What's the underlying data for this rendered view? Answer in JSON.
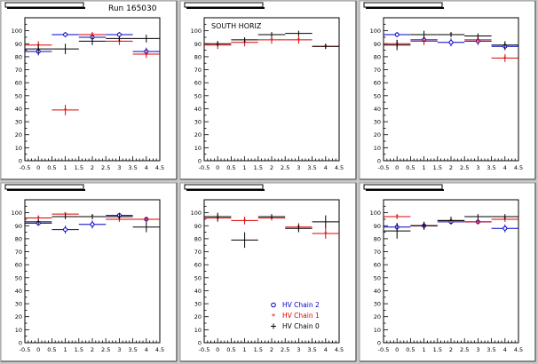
{
  "run_label": "Run 165030",
  "legend": [
    {
      "label": "HV Chain 2",
      "color": "#0000cc",
      "marker": "open-circle"
    },
    {
      "label": "HV Chain 1",
      "color": "#dd0000",
      "marker": "star"
    },
    {
      "label": "HV Chain 0",
      "color": "#000000",
      "marker": "cross"
    }
  ],
  "chart_data": [
    {
      "type": "scatter",
      "title": "",
      "annotation": "Run 165030",
      "xlim": [
        -0.5,
        4.5
      ],
      "ylim": [
        0,
        110
      ],
      "xticks": [
        "-0.5",
        "0",
        "0.5",
        "1",
        "1.5",
        "2",
        "2.5",
        "3",
        "3.5",
        "4",
        "4.5"
      ],
      "yticks": [
        "0",
        "10",
        "20",
        "30",
        "40",
        "50",
        "60",
        "70",
        "80",
        "90",
        "100"
      ],
      "series": [
        {
          "name": "HV Chain 2",
          "color": "#0000cc",
          "x": [
            0,
            1,
            2,
            3,
            4
          ],
          "y": [
            84,
            97,
            95,
            97,
            84
          ],
          "xerr": [
            0.5,
            0.5,
            0.5,
            0.5,
            0.5
          ],
          "yerr": [
            3,
            2,
            2,
            2,
            3
          ]
        },
        {
          "name": "HV Chain 1",
          "color": "#dd0000",
          "x": [
            0,
            1,
            2,
            3,
            4
          ],
          "y": [
            89,
            39,
            97,
            92,
            82
          ],
          "xerr": [
            0.5,
            0.5,
            0.5,
            0.5,
            0.5
          ],
          "yerr": [
            3,
            4,
            2,
            3,
            3
          ]
        },
        {
          "name": "HV Chain 0",
          "color": "#000000",
          "x": [
            0,
            1,
            2,
            3,
            4
          ],
          "y": [
            86,
            86,
            92,
            94,
            94
          ],
          "xerr": [
            0.5,
            0.5,
            0.5,
            0.5,
            0.5
          ],
          "yerr": [
            3,
            4,
            3,
            2,
            3
          ]
        }
      ]
    },
    {
      "type": "scatter",
      "title": "",
      "annotation": "SOUTH HORIZ",
      "xlim": [
        -0.5,
        4.5
      ],
      "ylim": [
        0,
        110
      ],
      "xticks": [
        "-0.5",
        "0",
        "0.5",
        "1",
        "1.5",
        "2",
        "2.5",
        "3",
        "3.5",
        "4",
        "4.5"
      ],
      "yticks": [
        "0",
        "10",
        "20",
        "30",
        "40",
        "50",
        "60",
        "70",
        "80",
        "90",
        "100"
      ],
      "series": [
        {
          "name": "HV Chain 2",
          "color": "#0000cc",
          "x": [],
          "y": [],
          "xerr": [],
          "yerr": []
        },
        {
          "name": "HV Chain 1",
          "color": "#dd0000",
          "x": [
            0,
            1,
            2,
            3,
            4
          ],
          "y": [
            89,
            91,
            93,
            93,
            88
          ],
          "xerr": [
            0.5,
            0.5,
            0.5,
            0.5,
            0.5
          ],
          "yerr": [
            3,
            3,
            3,
            3,
            2
          ]
        },
        {
          "name": "HV Chain 0",
          "color": "#000000",
          "x": [
            0,
            1,
            2,
            3,
            4
          ],
          "y": [
            90,
            93,
            97,
            98,
            88
          ],
          "xerr": [
            0.5,
            0.5,
            0.5,
            0.5,
            0.5
          ],
          "yerr": [
            2,
            2,
            2,
            2,
            2
          ]
        }
      ]
    },
    {
      "type": "scatter",
      "title": "",
      "annotation": "",
      "xlim": [
        -0.5,
        4.5
      ],
      "ylim": [
        0,
        110
      ],
      "xticks": [
        "-0.5",
        "0",
        "0.5",
        "1",
        "1.5",
        "2",
        "2.5",
        "3",
        "3.5",
        "4",
        "4.5"
      ],
      "yticks": [
        "0",
        "10",
        "20",
        "30",
        "40",
        "50",
        "60",
        "70",
        "80",
        "90",
        "100"
      ],
      "series": [
        {
          "name": "HV Chain 2",
          "color": "#0000cc",
          "x": [
            0,
            1,
            2,
            3,
            4
          ],
          "y": [
            97,
            93,
            91,
            92,
            88
          ],
          "xerr": [
            0.5,
            0.5,
            0.5,
            0.5,
            0.5
          ],
          "yerr": [
            2,
            2,
            3,
            3,
            3
          ]
        },
        {
          "name": "HV Chain 1",
          "color": "#dd0000",
          "x": [
            0,
            1,
            2,
            3,
            4
          ],
          "y": [
            90,
            92,
            97,
            93,
            79
          ],
          "xerr": [
            0.5,
            0.5,
            0.5,
            0.5,
            0.5
          ],
          "yerr": [
            3,
            3,
            2,
            3,
            3
          ]
        },
        {
          "name": "HV Chain 0",
          "color": "#000000",
          "x": [
            0,
            1,
            2,
            3,
            4
          ],
          "y": [
            89,
            97,
            97,
            96,
            89
          ],
          "xerr": [
            0.5,
            0.5,
            0.5,
            0.5,
            0.5
          ],
          "yerr": [
            4,
            3,
            2,
            2,
            3
          ]
        }
      ]
    },
    {
      "type": "scatter",
      "title": "",
      "annotation": "",
      "xlim": [
        -0.5,
        4.5
      ],
      "ylim": [
        0,
        110
      ],
      "xticks": [
        "-0.5",
        "0",
        "0.5",
        "1",
        "1.5",
        "2",
        "2.5",
        "3",
        "3.5",
        "4",
        "4.5"
      ],
      "yticks": [
        "0",
        "10",
        "20",
        "30",
        "40",
        "50",
        "60",
        "70",
        "80",
        "90",
        "100"
      ],
      "series": [
        {
          "name": "HV Chain 2",
          "color": "#0000cc",
          "x": [
            0,
            1,
            2,
            3,
            4
          ],
          "y": [
            92,
            87,
            91,
            98,
            95
          ],
          "xerr": [
            0.5,
            0.5,
            0.5,
            0.5,
            0.5
          ],
          "yerr": [
            2,
            3,
            3,
            2,
            2
          ]
        },
        {
          "name": "HV Chain 1",
          "color": "#dd0000",
          "x": [
            0,
            1,
            2,
            3,
            4
          ],
          "y": [
            96,
            99,
            97,
            95,
            95
          ],
          "xerr": [
            0.5,
            0.5,
            0.5,
            0.5,
            0.5
          ],
          "yerr": [
            2,
            1,
            2,
            2,
            2
          ]
        },
        {
          "name": "HV Chain 0",
          "color": "#000000",
          "x": [
            0,
            1,
            2,
            3,
            4
          ],
          "y": [
            93,
            97,
            97,
            97,
            89
          ],
          "xerr": [
            0.5,
            0.5,
            0.5,
            0.5,
            0.5
          ],
          "yerr": [
            2,
            2,
            2,
            2,
            4
          ]
        }
      ]
    },
    {
      "type": "scatter",
      "title": "",
      "annotation": "",
      "xlim": [
        -0.5,
        4.5
      ],
      "ylim": [
        0,
        110
      ],
      "xticks": [
        "-0.5",
        "0",
        "0.5",
        "1",
        "1.5",
        "2",
        "2.5",
        "3",
        "3.5",
        "4",
        "4.5"
      ],
      "yticks": [
        "0",
        "10",
        "20",
        "30",
        "40",
        "50",
        "60",
        "70",
        "80",
        "90",
        "100"
      ],
      "series": [
        {
          "name": "HV Chain 2",
          "color": "#0000cc",
          "x": [],
          "y": [],
          "xerr": [],
          "yerr": []
        },
        {
          "name": "HV Chain 1",
          "color": "#dd0000",
          "x": [
            0,
            1,
            2,
            3,
            4
          ],
          "y": [
            96,
            94,
            96,
            89,
            84
          ],
          "xerr": [
            0.5,
            0.5,
            0.5,
            0.5,
            0.5
          ],
          "yerr": [
            3,
            3,
            2,
            3,
            4
          ]
        },
        {
          "name": "HV Chain 0",
          "color": "#000000",
          "x": [
            0,
            1,
            2,
            3,
            4
          ],
          "y": [
            97,
            79,
            97,
            88,
            93
          ],
          "xerr": [
            0.5,
            0.5,
            0.5,
            0.5,
            0.5
          ],
          "yerr": [
            3,
            6,
            2,
            3,
            5
          ]
        }
      ]
    },
    {
      "type": "scatter",
      "title": "",
      "annotation": "",
      "xlim": [
        -0.5,
        4.5
      ],
      "ylim": [
        0,
        110
      ],
      "xticks": [
        "-0.5",
        "0",
        "0.5",
        "1",
        "1.5",
        "2",
        "2.5",
        "3",
        "3.5",
        "4",
        "4.5"
      ],
      "yticks": [
        "0",
        "10",
        "20",
        "30",
        "40",
        "50",
        "60",
        "70",
        "80",
        "90",
        "100"
      ],
      "series": [
        {
          "name": "HV Chain 2",
          "color": "#0000cc",
          "x": [
            0,
            1,
            2,
            3,
            4
          ],
          "y": [
            89,
            90,
            93,
            93,
            88
          ],
          "xerr": [
            0.5,
            0.5,
            0.5,
            0.5,
            0.5
          ],
          "yerr": [
            3,
            3,
            2,
            2,
            3
          ]
        },
        {
          "name": "HV Chain 1",
          "color": "#dd0000",
          "x": [
            0,
            1,
            2,
            3,
            4
          ],
          "y": [
            97,
            90,
            94,
            93,
            95
          ],
          "xerr": [
            0.5,
            0.5,
            0.5,
            0.5,
            0.5
          ],
          "yerr": [
            2,
            3,
            2,
            2,
            2
          ]
        },
        {
          "name": "HV Chain 0",
          "color": "#000000",
          "x": [
            0,
            1,
            2,
            3,
            4
          ],
          "y": [
            86,
            90,
            94,
            97,
            97
          ],
          "xerr": [
            0.5,
            0.5,
            0.5,
            0.5,
            0.5
          ],
          "yerr": [
            6,
            3,
            3,
            2,
            2
          ]
        }
      ]
    }
  ]
}
